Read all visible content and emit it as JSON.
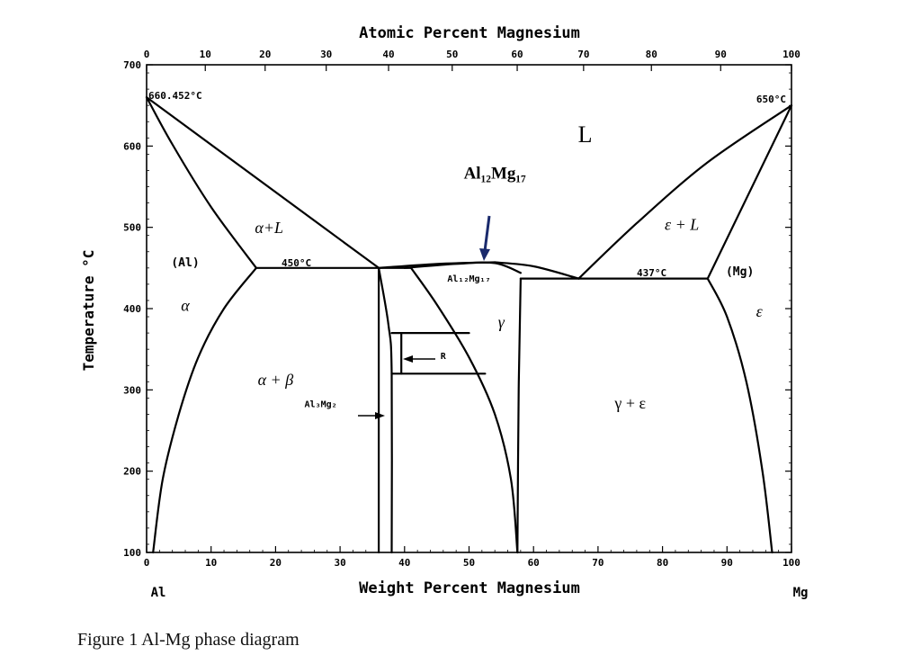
{
  "caption": "Figure 1 Al-Mg phase diagram",
  "chart_data": {
    "type": "phase-diagram",
    "title": "",
    "xlabel": "Weight Percent Magnesium",
    "x2label": "Atomic Percent Magnesium",
    "ylabel": "Temperature °C",
    "xlim": [
      0,
      100
    ],
    "ylim": [
      100,
      700
    ],
    "grid": false,
    "x_ticks": [
      0,
      10,
      20,
      30,
      40,
      50,
      60,
      70,
      80,
      90,
      100
    ],
    "x2_ticks": [
      0,
      10,
      20,
      30,
      40,
      50,
      60,
      70,
      80,
      90,
      100
    ],
    "y_ticks": [
      100,
      200,
      300,
      400,
      500,
      600,
      700
    ],
    "end_labels": {
      "left": "Al",
      "right": "Mg"
    },
    "temperatures": {
      "al_melting": "660.452°C",
      "mg_melting": "650°C",
      "eutectic_al_side": "450°C",
      "eutectic_mg_side": "437°C"
    },
    "phase_labels": [
      {
        "text": "L",
        "x": 68,
        "y": 605,
        "style": "roman-large"
      },
      {
        "text": "Al₁₂Mg₁₇",
        "x": 54,
        "y": 560,
        "style": "bold-serif"
      },
      {
        "text": "α+L",
        "x": 19,
        "y": 493,
        "style": "italic"
      },
      {
        "text": "ε + L",
        "x": 83,
        "y": 497,
        "style": "italic"
      },
      {
        "text": "(Al)",
        "x": 6,
        "y": 452,
        "style": "mono-bold"
      },
      {
        "text": "(Mg)",
        "x": 92,
        "y": 441,
        "style": "mono-bold"
      },
      {
        "text": "Al₁₂Mg₁₇",
        "x": 50,
        "y": 433,
        "style": "mono-bold-small"
      },
      {
        "text": "α",
        "x": 6,
        "y": 397,
        "style": "italic"
      },
      {
        "text": "ε",
        "x": 95,
        "y": 390,
        "style": "italic"
      },
      {
        "text": "γ",
        "x": 55,
        "y": 377,
        "style": "italic"
      },
      {
        "text": "R",
        "x": 46,
        "y": 338,
        "style": "mono-bold-small"
      },
      {
        "text": "α + β",
        "x": 20,
        "y": 306,
        "style": "italic"
      },
      {
        "text": "Al₃Mg₂",
        "x": 27,
        "y": 279,
        "style": "mono-bold-small"
      },
      {
        "text": "γ + ε",
        "x": 75,
        "y": 277,
        "style": "roman"
      }
    ],
    "boundaries": [
      {
        "name": "liquidus-al",
        "points": [
          [
            0,
            660
          ],
          [
            36,
            450
          ]
        ]
      },
      {
        "name": "solidus-al",
        "points": [
          [
            0,
            660
          ],
          [
            4,
            602
          ],
          [
            10,
            525
          ],
          [
            17,
            450
          ]
        ]
      },
      {
        "name": "solvus-al",
        "points": [
          [
            17,
            450
          ],
          [
            12,
            400
          ],
          [
            8,
            340
          ],
          [
            5,
            270
          ],
          [
            2.5,
            190
          ],
          [
            1,
            100
          ]
        ]
      },
      {
        "name": "eutectic-450",
        "points": [
          [
            17,
            450
          ],
          [
            36,
            450
          ]
        ]
      },
      {
        "name": "beta-left",
        "points": [
          [
            36,
            450
          ],
          [
            36,
            100
          ]
        ]
      },
      {
        "name": "beta-right",
        "points": [
          [
            36,
            450
          ],
          [
            37.5,
            380
          ],
          [
            38,
            320
          ],
          [
            38,
            100
          ]
        ]
      },
      {
        "name": "liquidus-gamma-left",
        "points": [
          [
            36,
            450
          ],
          [
            45,
            455
          ],
          [
            54,
            457
          ]
        ]
      },
      {
        "name": "liquidus-gamma-right",
        "points": [
          [
            54,
            457
          ],
          [
            60,
            452
          ],
          [
            67,
            437
          ]
        ]
      },
      {
        "name": "gamma-cap",
        "points": [
          [
            40,
            450
          ],
          [
            48,
            455
          ],
          [
            54,
            456
          ],
          [
            58,
            444
          ]
        ]
      },
      {
        "name": "peritectic-410",
        "points": [
          [
            36,
            450
          ],
          [
            41,
            450
          ]
        ]
      },
      {
        "name": "gamma-solvus-left",
        "points": [
          [
            41,
            450
          ],
          [
            45,
            405
          ],
          [
            50,
            340
          ],
          [
            54,
            270
          ],
          [
            56.5,
            190
          ],
          [
            57.5,
            100
          ]
        ]
      },
      {
        "name": "gamma-solvus-right",
        "points": [
          [
            58,
            437
          ],
          [
            57.7,
            300
          ],
          [
            57.5,
            100
          ]
        ]
      },
      {
        "name": "eutectic-437",
        "points": [
          [
            58,
            437
          ],
          [
            87,
            437
          ]
        ]
      },
      {
        "name": "liquidus-mg",
        "points": [
          [
            67,
            437
          ],
          [
            76,
            505
          ],
          [
            87,
            580
          ],
          [
            100,
            650
          ]
        ]
      },
      {
        "name": "solidus-mg",
        "points": [
          [
            87,
            437
          ],
          [
            100,
            650
          ]
        ]
      },
      {
        "name": "solvus-mg",
        "points": [
          [
            87,
            437
          ],
          [
            90,
            390
          ],
          [
            93,
            310
          ],
          [
            95.5,
            200
          ],
          [
            97,
            100
          ]
        ]
      },
      {
        "name": "r-box-top",
        "points": [
          [
            38,
            370
          ],
          [
            50,
            370
          ]
        ]
      },
      {
        "name": "r-box-bottom",
        "points": [
          [
            38,
            320
          ],
          [
            52.5,
            320
          ]
        ]
      },
      {
        "name": "r-box-left",
        "points": [
          [
            39.5,
            370
          ],
          [
            39.5,
            320
          ]
        ]
      }
    ]
  }
}
